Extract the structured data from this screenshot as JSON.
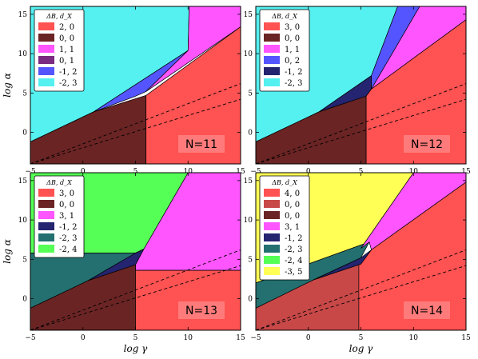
{
  "figure": {
    "xlabel": "log γ",
    "ylabel": "log α",
    "legend_title": "ΔB, d_X"
  },
  "chart_data": [
    {
      "type": "area",
      "subtitle": "N=11",
      "xlim": [
        -5,
        15
      ],
      "ylim": [
        -4,
        16
      ],
      "xticks": [
        "−5",
        "0",
        "5",
        "10",
        "15"
      ],
      "yticks": [
        "0",
        "5",
        "10",
        "15"
      ],
      "xlabel": "",
      "ylabel": "log α",
      "legend": [
        {
          "label": "2, 0",
          "color": "#ff5252"
        },
        {
          "label": "0, 0",
          "color": "#6b2424"
        },
        {
          "label": "1, 1",
          "color": "#ff55ff"
        },
        {
          "label": "0, 1",
          "color": "#7a2a80"
        },
        {
          "label": "-1, 2",
          "color": "#5555ff"
        },
        {
          "label": "-2, 3",
          "color": "#55f0f0"
        }
      ],
      "regions": [
        {
          "label": "-2, 3",
          "points": [
            [
              -5,
              16
            ],
            [
              -5,
              -1.2
            ],
            [
              1,
              2.6
            ],
            [
              10,
              10.4
            ],
            [
              10.1,
              16
            ]
          ]
        },
        {
          "label": "-1, 2",
          "points": [
            [
              1,
              2.6
            ],
            [
              10,
              10.4
            ],
            [
              6,
              5.2
            ],
            [
              5,
              4.6
            ]
          ]
        },
        {
          "label": "1, 1",
          "points": [
            [
              10,
              10.4
            ],
            [
              10.1,
              16
            ],
            [
              12.4,
              16
            ],
            [
              15,
              16
            ],
            [
              15,
              13.4
            ],
            [
              6,
              5.2
            ]
          ]
        },
        {
          "label": "0, 0",
          "points": [
            [
              -5,
              -4
            ],
            [
              6,
              -4
            ],
            [
              6,
              4.7
            ],
            [
              1,
              2.6
            ],
            [
              -5,
              -1.2
            ]
          ]
        },
        {
          "label": "2, 0",
          "points": [
            [
              6,
              -4
            ],
            [
              15,
              -4
            ],
            [
              15,
              13.4
            ],
            [
              6,
              4.7
            ]
          ]
        }
      ],
      "dashed_lines": [
        {
          "x": [
            -5,
            15
          ],
          "y": [
            -4,
            6.2
          ]
        },
        {
          "x": [
            -5,
            15
          ],
          "y": [
            -4,
            4.2
          ]
        }
      ]
    },
    {
      "type": "area",
      "subtitle": "N=12",
      "xlim": [
        -5,
        15
      ],
      "ylim": [
        -4,
        16
      ],
      "xticks": [
        "−5",
        "0",
        "5",
        "10",
        "15"
      ],
      "yticks": [
        "0",
        "5",
        "10",
        "15"
      ],
      "xlabel": "log γ",
      "ylabel": "",
      "legend": [
        {
          "label": "3, 0",
          "color": "#ff5252"
        },
        {
          "label": "0, 0",
          "color": "#6b2424"
        },
        {
          "label": "1, 1",
          "color": "#ff55ff"
        },
        {
          "label": "0, 2",
          "color": "#5555ff"
        },
        {
          "label": "-1, 2",
          "color": "#242470"
        },
        {
          "label": "-2, 3",
          "color": "#55f0f0"
        }
      ],
      "regions": [
        {
          "label": "-2, 3",
          "points": [
            [
              -5,
              16
            ],
            [
              -5,
              -1.2
            ],
            [
              1,
              2.6
            ],
            [
              6,
              7.2
            ],
            [
              8.5,
              16
            ]
          ]
        },
        {
          "label": "-1, 2",
          "points": [
            [
              1,
              2.6
            ],
            [
              6,
              7.2
            ],
            [
              6,
              5.5
            ],
            [
              5.5,
              4.6
            ]
          ]
        },
        {
          "label": "0, 2",
          "points": [
            [
              6,
              7.2
            ],
            [
              8.5,
              16
            ],
            [
              10.6,
              16
            ],
            [
              6,
              5.5
            ]
          ]
        },
        {
          "label": "1, 1",
          "points": [
            [
              10.6,
              16
            ],
            [
              15,
              16
            ],
            [
              15,
              14.3
            ],
            [
              6,
              5.5
            ]
          ]
        },
        {
          "label": "0, 0",
          "points": [
            [
              -5,
              -4
            ],
            [
              5.5,
              -4
            ],
            [
              5.5,
              4.6
            ],
            [
              1,
              2.6
            ],
            [
              -5,
              -1.2
            ]
          ]
        },
        {
          "label": "3, 0",
          "points": [
            [
              5.5,
              -4
            ],
            [
              15,
              -4
            ],
            [
              15,
              14.3
            ],
            [
              6,
              5.5
            ],
            [
              5.5,
              4.6
            ]
          ]
        }
      ],
      "dashed_lines": [
        {
          "x": [
            -5,
            15
          ],
          "y": [
            -4,
            6.2
          ]
        },
        {
          "x": [
            -5,
            15
          ],
          "y": [
            -4,
            4.2
          ]
        }
      ]
    },
    {
      "type": "area",
      "subtitle": "N=13",
      "xlim": [
        -5,
        15
      ],
      "ylim": [
        -4,
        16
      ],
      "xticks": [
        "−5",
        "0",
        "5",
        "10",
        "15"
      ],
      "yticks": [
        "0",
        "5",
        "10",
        "15"
      ],
      "xlabel": "log γ",
      "ylabel": "log α",
      "legend": [
        {
          "label": "3, 0",
          "color": "#ff5252"
        },
        {
          "label": "0, 0",
          "color": "#6b2424"
        },
        {
          "label": "3, 1",
          "color": "#ff55ff"
        },
        {
          "label": "-1, 2",
          "color": "#242470"
        },
        {
          "label": "-2, 3",
          "color": "#247070"
        },
        {
          "label": "-2, 4",
          "color": "#55ff55"
        }
      ],
      "regions": [
        {
          "label": "-2, 4",
          "points": [
            [
              -5,
              16
            ],
            [
              -5,
              5.8
            ],
            [
              5,
              5.8
            ],
            [
              5.8,
              6.3
            ],
            [
              10,
              16
            ]
          ]
        },
        {
          "label": "-2, 3",
          "points": [
            [
              -5,
              5.8
            ],
            [
              5,
              5.8
            ],
            [
              0.5,
              2.3
            ],
            [
              -5,
              -1.2
            ]
          ]
        },
        {
          "label": "-1, 2",
          "points": [
            [
              5,
              5.8
            ],
            [
              5.8,
              6.3
            ],
            [
              5,
              4.3
            ],
            [
              0.5,
              2.3
            ]
          ]
        },
        {
          "label": "3, 1",
          "points": [
            [
              5.8,
              6.3
            ],
            [
              10,
              16
            ],
            [
              15,
              16
            ],
            [
              15,
              3.6
            ],
            [
              5,
              3.6
            ],
            [
              5,
              4.3
            ]
          ]
        },
        {
          "label": "0, 0",
          "points": [
            [
              -5,
              -4
            ],
            [
              5,
              -4
            ],
            [
              5,
              4.3
            ],
            [
              0.5,
              2.3
            ],
            [
              -5,
              -1.2
            ]
          ]
        },
        {
          "label": "3, 0",
          "points": [
            [
              5,
              -4
            ],
            [
              15,
              -4
            ],
            [
              15,
              3.6
            ],
            [
              5,
              3.6
            ]
          ]
        }
      ],
      "dashed_lines": [
        {
          "x": [
            -5,
            15
          ],
          "y": [
            -4,
            6.2
          ]
        },
        {
          "x": [
            -5,
            15
          ],
          "y": [
            -4,
            4.2
          ]
        }
      ]
    },
    {
      "type": "area",
      "subtitle": "N=14",
      "xlim": [
        -5,
        15
      ],
      "ylim": [
        -4,
        16
      ],
      "xticks": [
        "−5",
        "0",
        "5",
        "10",
        "15"
      ],
      "yticks": [
        "0",
        "5",
        "10",
        "15"
      ],
      "xlabel": "log γ",
      "ylabel": "",
      "legend": [
        {
          "label": "4, 0",
          "color": "#ff5252"
        },
        {
          "label": "0, 0",
          "color": "#c84848"
        },
        {
          "label": "0, 0",
          "color": "#6b2424"
        },
        {
          "label": "3, 1",
          "color": "#ff55ff"
        },
        {
          "label": "-1, 2",
          "color": "#242470"
        },
        {
          "label": "-2, 3",
          "color": "#247070"
        },
        {
          "label": "-2, 4",
          "color": "#55ff55"
        },
        {
          "label": "-3, 5",
          "color": "#ffff55"
        }
      ],
      "regions": [
        {
          "label": "-3, 5",
          "points": [
            [
              -5,
              16
            ],
            [
              -5,
              0.8
            ],
            [
              5,
              6.4
            ],
            [
              10,
              16
            ]
          ]
        },
        {
          "label": "-2, 4",
          "points": [
            [
              -5,
              0.8
            ],
            [
              5,
              6.4
            ],
            [
              5.8,
              7.2
            ],
            [
              -5,
              2.0
            ]
          ]
        },
        {
          "label": "-2, 3",
          "points": [
            [
              -5,
              2.0
            ],
            [
              5.8,
              7.2
            ],
            [
              5,
              5.2
            ],
            [
              0.5,
              2.4
            ],
            [
              -5,
              -1.2
            ]
          ]
        },
        {
          "label": "-1, 2",
          "points": [
            [
              0.5,
              2.4
            ],
            [
              5,
              5.2
            ],
            [
              6,
              6.2
            ],
            [
              5,
              4.4
            ]
          ]
        },
        {
          "label": "3, 1",
          "points": [
            [
              5,
              6.4
            ],
            [
              10,
              16
            ],
            [
              15,
              16
            ],
            [
              15,
              14.8
            ],
            [
              6,
              6.2
            ],
            [
              5.8,
              7.2
            ]
          ]
        },
        {
          "label": "0, 0",
          "points": [
            [
              -5,
              -4
            ],
            [
              4.8,
              -4
            ],
            [
              4.8,
              4.3
            ],
            [
              0.5,
              2.4
            ],
            [
              -5,
              -1.2
            ]
          ]
        },
        {
          "label": "4, 0",
          "points": [
            [
              4.8,
              -4
            ],
            [
              15,
              -4
            ],
            [
              15,
              14.8
            ],
            [
              6,
              6.2
            ],
            [
              5,
              4.4
            ],
            [
              4.8,
              4.3
            ]
          ]
        }
      ],
      "dashed_lines": [
        {
          "x": [
            -5,
            15
          ],
          "y": [
            -4,
            6.2
          ]
        },
        {
          "x": [
            -5,
            15
          ],
          "y": [
            -4,
            4.2
          ]
        }
      ]
    }
  ]
}
